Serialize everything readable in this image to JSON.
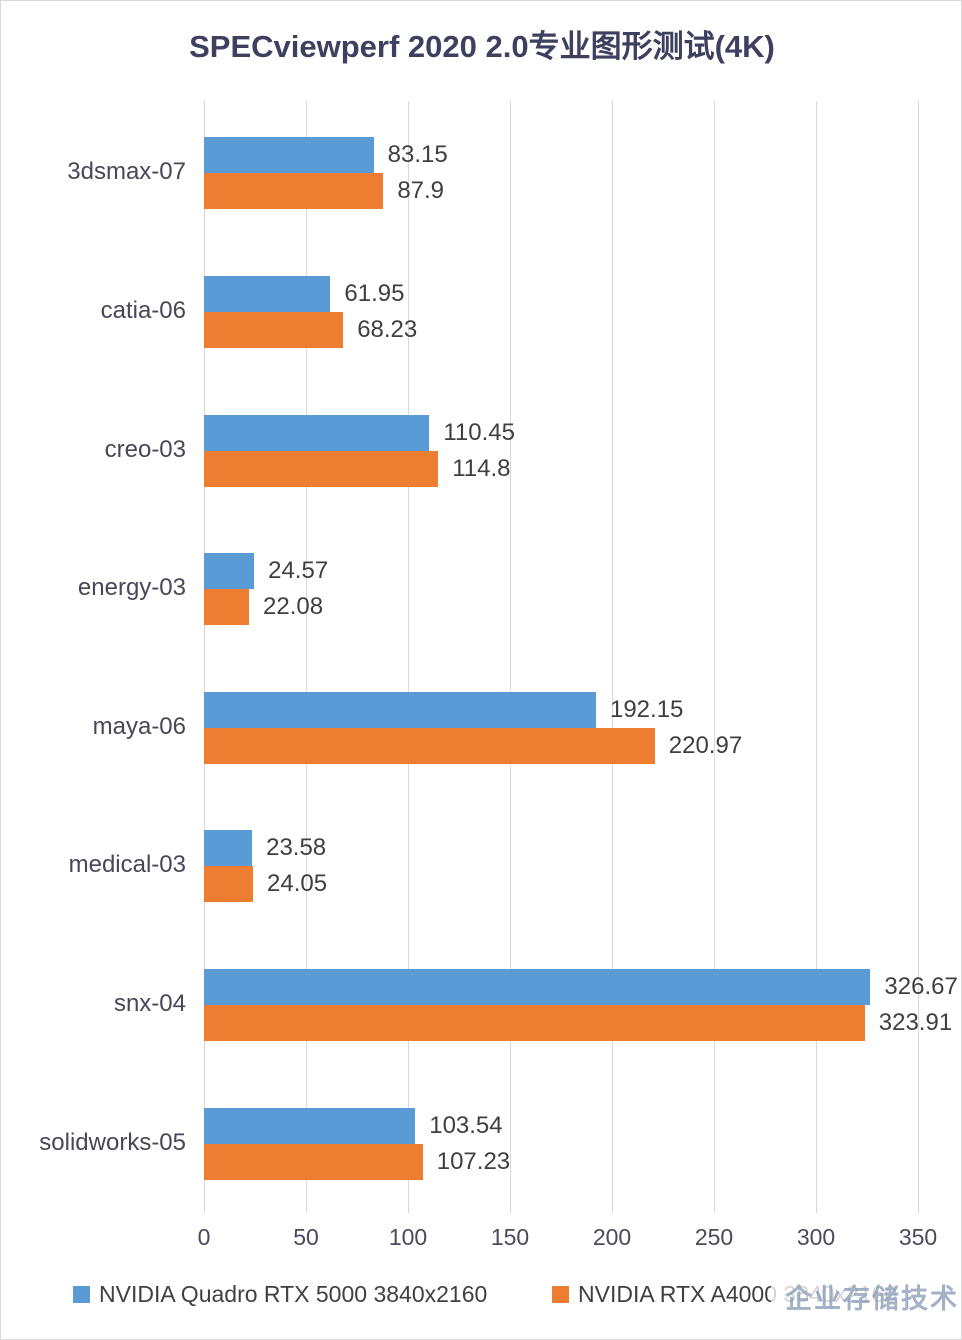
{
  "title": "SPECviewperf 2020 2.0专业图形测试(4K)",
  "watermark": "企业存储技术",
  "colors": {
    "series1": "#5B9BD5",
    "series2": "#ED7D31",
    "gridline": "#D9D9D9",
    "title_text": "#3E4060",
    "category_text": "#474757",
    "value_text": "#3F3F3F",
    "tick_text": "#4A4A5C",
    "legend_text": "#404040",
    "watermark_text": "#9FAEC4"
  },
  "chart_data": {
    "type": "bar",
    "orientation": "horizontal",
    "title": "SPECviewperf 2020 2.0专业图形测试(4K)",
    "categories": [
      "3dsmax-07",
      "catia-06",
      "creo-03",
      "energy-03",
      "maya-06",
      "medical-03",
      "snx-04",
      "solidworks-05"
    ],
    "series": [
      {
        "name": "NVIDIA Quadro RTX 5000 3840x2160",
        "color": "#5B9BD5",
        "values": [
          83.15,
          61.95,
          110.45,
          24.57,
          192.15,
          23.58,
          326.67,
          103.54
        ],
        "value_labels": [
          "83.15",
          "61.95",
          "110.45",
          "24.57",
          "192.15",
          "23.58",
          "326.67",
          "103.54"
        ]
      },
      {
        "name": "NVIDIA RTX A4000 3840x2160",
        "color": "#ED7D31",
        "values": [
          87.9,
          68.23,
          114.8,
          22.08,
          220.97,
          24.05,
          323.91,
          107.23
        ],
        "value_labels": [
          "87.9",
          "68.23",
          "114.8",
          "22.08",
          "220.97",
          "24.05",
          "323.91",
          "107.23"
        ]
      }
    ],
    "xlabel": "",
    "ylabel": "",
    "xlim": [
      0,
      350
    ],
    "xticks": [
      0,
      50,
      100,
      150,
      200,
      250,
      300,
      350
    ],
    "grid": true,
    "legend_position": "bottom",
    "data_labels": true
  }
}
